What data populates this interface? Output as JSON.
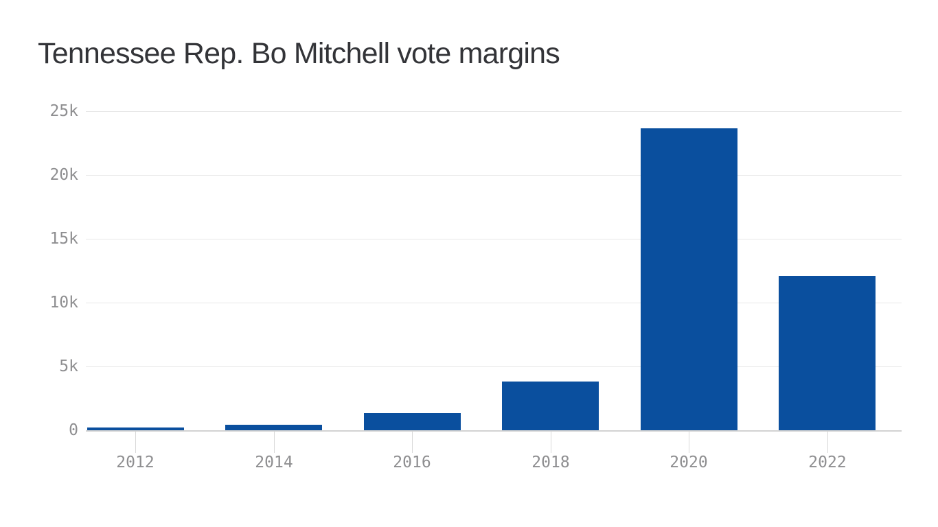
{
  "title": "Tennessee Rep. Bo Mitchell vote margins",
  "chart_data": {
    "type": "bar",
    "title": "Tennessee Rep. Bo Mitchell vote margins",
    "categories": [
      "2012",
      "2014",
      "2016",
      "2018",
      "2020",
      "2022"
    ],
    "values": [
      190,
      430,
      1320,
      3800,
      23650,
      12100
    ],
    "xlabel": "",
    "ylabel": "",
    "ylim": [
      0,
      25000
    ],
    "y_ticks": [
      {
        "value": 0,
        "label": "0"
      },
      {
        "value": 5000,
        "label": "5k"
      },
      {
        "value": 10000,
        "label": "10k"
      },
      {
        "value": 15000,
        "label": "15k"
      },
      {
        "value": 20000,
        "label": "20k"
      },
      {
        "value": 25000,
        "label": "25k"
      }
    ],
    "grid": "horizontal-only",
    "legend": "none",
    "series_name": "vote margin"
  },
  "colors": {
    "background": "#ffffff",
    "bar": "#0a4f9e",
    "title_text": "#333438",
    "axis_text": "#8e8e90",
    "gridline": "#e8e8e8",
    "zero_line": "#d2d2d2",
    "tick_line": "#d8d8d8"
  }
}
